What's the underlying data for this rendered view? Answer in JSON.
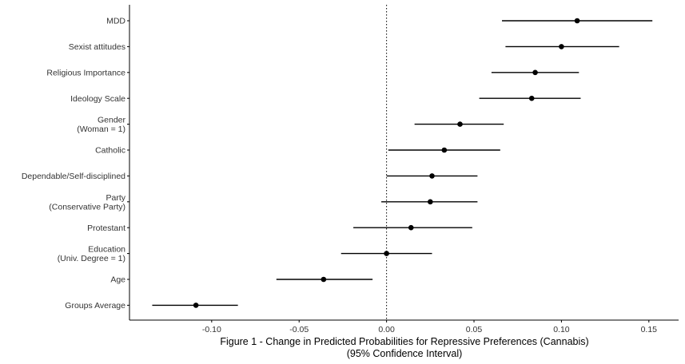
{
  "chart_data": {
    "type": "forest",
    "title": "",
    "xlabel": [
      "Figure 1 - Change in Predicted Probabilities for Repressive Preferences (Cannabis)",
      "(95% Confidence Interval)"
    ],
    "ylabel": "",
    "xlim": [
      -0.147,
      0.167
    ],
    "xticks": [
      -0.1,
      -0.05,
      0.0,
      0.05,
      0.1,
      0.15
    ],
    "xtick_labels": [
      "-0.10",
      "-0.05",
      "0.00",
      "0.05",
      "0.10",
      "0.15"
    ],
    "reference_line": {
      "x": 0.0,
      "style": "dotted"
    },
    "grid": false,
    "points": [
      {
        "label": [
          "MDD"
        ],
        "estimate": 0.109,
        "lower": 0.066,
        "upper": 0.152
      },
      {
        "label": [
          "Sexist attitudes"
        ],
        "estimate": 0.1,
        "lower": 0.068,
        "upper": 0.133
      },
      {
        "label": [
          "Religious Importance"
        ],
        "estimate": 0.085,
        "lower": 0.06,
        "upper": 0.11
      },
      {
        "label": [
          "Ideology Scale"
        ],
        "estimate": 0.083,
        "lower": 0.053,
        "upper": 0.111
      },
      {
        "label": [
          "Gender",
          "(Woman = 1)"
        ],
        "estimate": 0.042,
        "lower": 0.016,
        "upper": 0.067
      },
      {
        "label": [
          "Catholic"
        ],
        "estimate": 0.033,
        "lower": 0.001,
        "upper": 0.065
      },
      {
        "label": [
          "Dependable/Self-disciplined"
        ],
        "estimate": 0.026,
        "lower": 0.0,
        "upper": 0.052
      },
      {
        "label": [
          "Party",
          "(Conservative Party)"
        ],
        "estimate": 0.025,
        "lower": -0.003,
        "upper": 0.052
      },
      {
        "label": [
          "Protestant"
        ],
        "estimate": 0.014,
        "lower": -0.019,
        "upper": 0.049
      },
      {
        "label": [
          "Education",
          "(Univ. Degree = 1)"
        ],
        "estimate": 0.0,
        "lower": -0.026,
        "upper": 0.026
      },
      {
        "label": [
          "Age"
        ],
        "estimate": -0.036,
        "lower": -0.063,
        "upper": -0.008
      },
      {
        "label": [
          "Groups Average"
        ],
        "estimate": -0.109,
        "lower": -0.134,
        "upper": -0.085
      }
    ],
    "colors": {
      "marks": "#000000",
      "axis": "#000000",
      "text": "#333333"
    }
  }
}
